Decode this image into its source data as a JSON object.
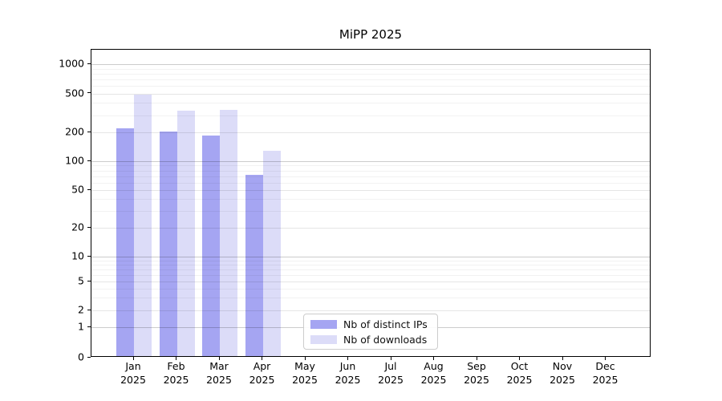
{
  "title": "MiPP 2025",
  "chart_data": {
    "type": "bar",
    "title": "MiPP 2025",
    "categories": [
      "Jan\n2025",
      "Feb\n2025",
      "Mar\n2025",
      "Apr\n2025",
      "May\n2025",
      "Jun\n2025",
      "Jul\n2025",
      "Aug\n2025",
      "Sep\n2025",
      "Oct\n2025",
      "Nov\n2025",
      "Dec\n2025"
    ],
    "series": [
      {
        "name": "Nb of distinct IPs",
        "color": "#a5a5f2",
        "values": [
          220,
          205,
          185,
          72,
          null,
          null,
          null,
          null,
          null,
          null,
          null,
          null
        ]
      },
      {
        "name": "Nb of downloads",
        "color": "#dcdcf8",
        "values": [
          485,
          330,
          340,
          129,
          null,
          null,
          null,
          null,
          null,
          null,
          null,
          null
        ]
      }
    ],
    "y_axis": {
      "scale": "symlog",
      "ticks": [
        0,
        1,
        2,
        5,
        10,
        20,
        50,
        100,
        200,
        500,
        1000
      ],
      "ylim": [
        0,
        1400
      ]
    },
    "x_axis": {
      "label": ""
    },
    "legend": {
      "position": "lower center",
      "entries": [
        "Nb of distinct IPs",
        "Nb of downloads"
      ]
    },
    "grid": true,
    "grid_over_bars": true,
    "background_color": "#ffffff"
  }
}
